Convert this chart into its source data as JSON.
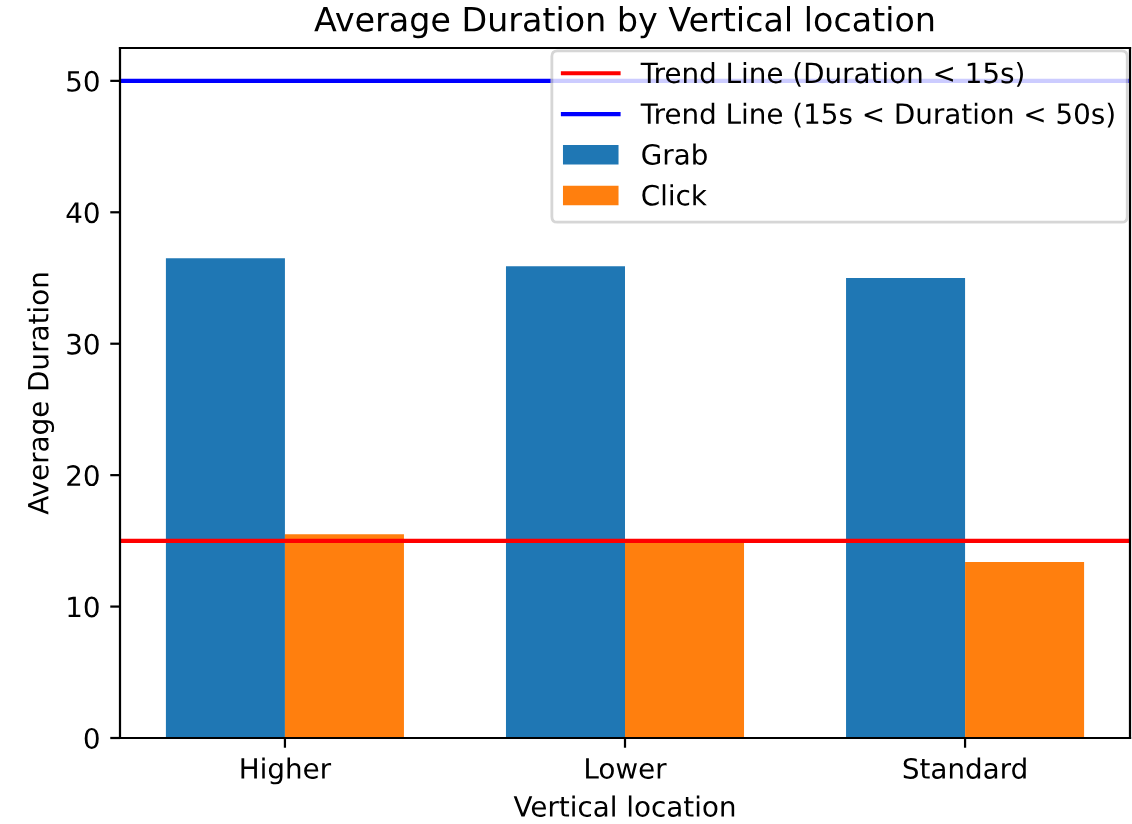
{
  "chart_data": {
    "type": "bar",
    "title": "Average Duration by Vertical location",
    "xlabel": "Vertical location",
    "ylabel": "Average Duration",
    "categories": [
      "Higher",
      "Lower",
      "Standard"
    ],
    "series": [
      {
        "name": "Grab",
        "color": "#1f77b4",
        "values": [
          36.5,
          35.9,
          35.0
        ]
      },
      {
        "name": "Click",
        "color": "#ff7f0e",
        "values": [
          15.5,
          14.9,
          13.4
        ]
      }
    ],
    "ref_lines": [
      {
        "axis": "y",
        "value": 15,
        "label": "Trend Line (Duration < 15s)",
        "color": "#ff0000"
      },
      {
        "axis": "y",
        "value": 50,
        "label": "Trend Line (15s < Duration < 50s)",
        "color": "#0000ff"
      }
    ],
    "ylim": [
      0,
      52.5
    ],
    "yticks": [
      0,
      10,
      20,
      30,
      40,
      50
    ],
    "grid": false,
    "legend": "top right"
  }
}
